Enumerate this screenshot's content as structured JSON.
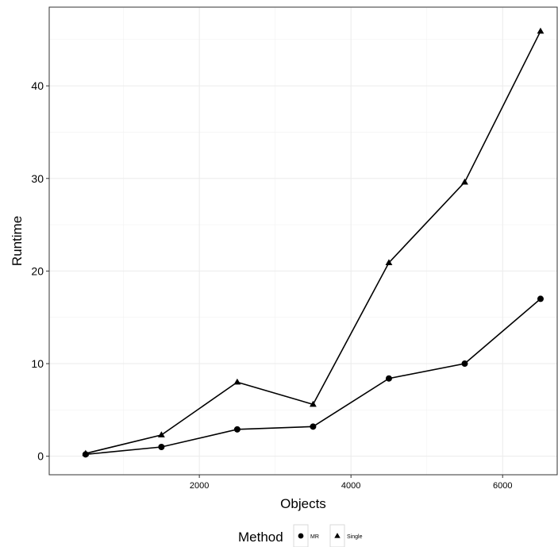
{
  "chart_data": {
    "type": "line",
    "title": "",
    "xlabel": "Objects",
    "ylabel": "Runtime",
    "xlim": [
      20,
      6720
    ],
    "ylim": [
      -2,
      48.5
    ],
    "x_ticks": [
      2000,
      4000,
      6000
    ],
    "y_ticks": [
      0,
      10,
      20,
      30,
      40
    ],
    "grid": true,
    "legend": {
      "title": "Method",
      "position": "bottom",
      "entries": [
        {
          "label": "MR",
          "marker": "circle"
        },
        {
          "label": "Single",
          "marker": "triangle"
        }
      ]
    },
    "x": [
      500,
      1500,
      2500,
      3500,
      4500,
      5500,
      6500
    ],
    "series": [
      {
        "name": "MR",
        "marker": "circle",
        "values": [
          0.2,
          1.0,
          2.9,
          3.2,
          8.4,
          10.0,
          17.0
        ]
      },
      {
        "name": "Single",
        "marker": "triangle",
        "values": [
          0.3,
          2.3,
          8.0,
          5.6,
          20.9,
          29.6,
          45.9
        ]
      }
    ],
    "colors": {
      "line": "#000000",
      "grid": "#ebebeb",
      "panel_border": "#333333"
    }
  }
}
